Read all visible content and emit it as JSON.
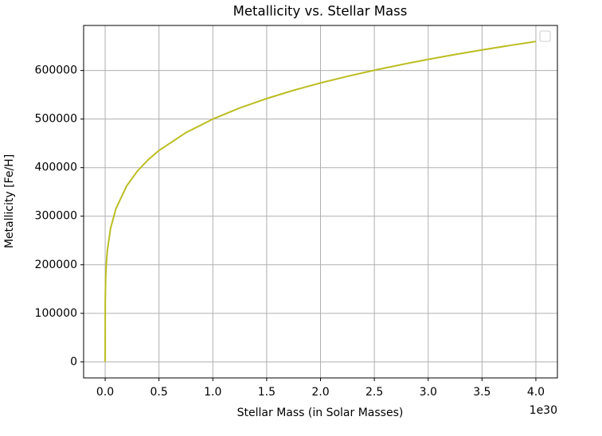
{
  "chart_data": {
    "type": "line",
    "title": "Metallicity vs. Stellar Mass",
    "xlabel": "Stellar Mass (in Solar Masses)",
    "ylabel": "Metallicity [Fe/H]",
    "x_offset_label": "1e30",
    "x": [
      0,
      0.001,
      0.005,
      0.01,
      0.02,
      0.05,
      0.1,
      0.2,
      0.3,
      0.4,
      0.5,
      0.75,
      1.0,
      1.25,
      1.5,
      1.75,
      2.0,
      2.25,
      2.5,
      2.75,
      3.0,
      3.25,
      3.5,
      3.75,
      4.0
    ],
    "values": [
      0,
      125594,
      173286,
      199054,
      228653,
      274653,
      315479,
      362390,
      393012,
      416310,
      435275,
      472049,
      500000,
      522820,
      542236,
      559214,
      574349,
      588040,
      600561,
      612120,
      622866,
      632917,
      642369,
      651295,
      659754
    ],
    "color": "#bcbd22",
    "xlim": [
      -0.2,
      4.2
    ],
    "ylim": [
      -32988,
      692742
    ],
    "xticks": [
      {
        "value": 0,
        "label": "0.0"
      },
      0.5,
      {
        "value": 1,
        "label": "1.0"
      },
      1.5,
      {
        "value": 2,
        "label": "2.0"
      },
      2.5,
      {
        "value": 3,
        "label": "3.0"
      },
      3.5,
      {
        "value": 4,
        "label": "4.0"
      }
    ],
    "yticks": [
      0,
      100000,
      200000,
      300000,
      400000,
      500000,
      600000
    ],
    "grid": true
  }
}
